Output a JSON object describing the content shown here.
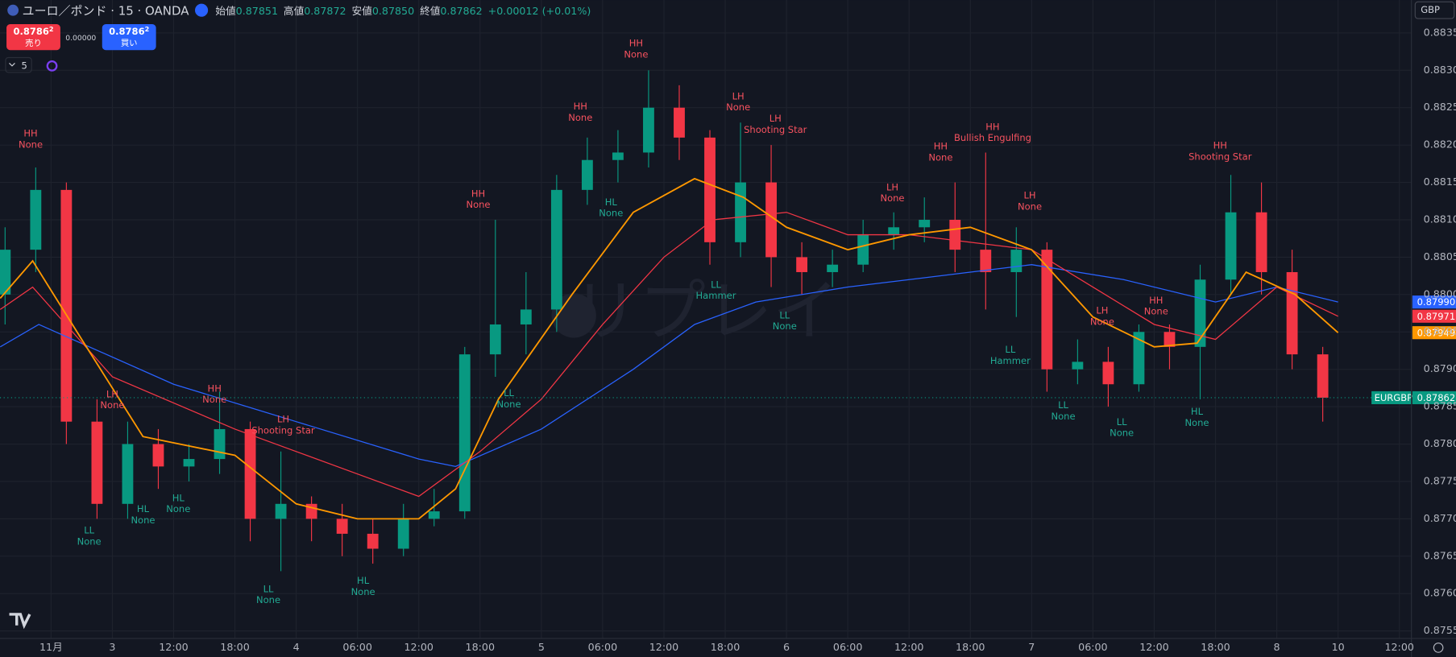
{
  "header": {
    "symbol": "ユーロ／ポンド · 15 · OANDA",
    "ohlc": [
      {
        "label": "始値",
        "value": "0.87851"
      },
      {
        "label": "高値",
        "value": "0.87872"
      },
      {
        "label": "安値",
        "value": "0.87850"
      },
      {
        "label": "終値",
        "value": "0.87862"
      }
    ],
    "change": "+0.00012 (+0.01%)"
  },
  "trade": {
    "sell_price": "0.8786",
    "sell_sup": "2",
    "sell_label": "売り",
    "spread": "0.00000",
    "buy_price": "0.8786",
    "buy_sup": "2",
    "buy_label": "買い"
  },
  "indicators_count": "5",
  "currency": "GBP",
  "watermark": "リプレイ",
  "chart_data": {
    "type": "candlestick",
    "up_color": "#089981",
    "down_color": "#f23645",
    "xlim": [
      -0.833,
      22.197
    ],
    "xticks": [
      {
        "value": 0,
        "label": "11月"
      },
      {
        "value": 1,
        "label": "3"
      },
      {
        "value": 2,
        "label": "12:00"
      },
      {
        "value": 3,
        "label": "18:00"
      },
      {
        "value": 4,
        "label": "4"
      },
      {
        "value": 5,
        "label": "06:00"
      },
      {
        "value": 6,
        "label": "12:00"
      },
      {
        "value": 7,
        "label": "18:00"
      },
      {
        "value": 8,
        "label": "5"
      },
      {
        "value": 9,
        "label": "06:00"
      },
      {
        "value": 10,
        "label": "12:00"
      },
      {
        "value": 11,
        "label": "18:00"
      },
      {
        "value": 12,
        "label": "6"
      },
      {
        "value": 13,
        "label": "06:00"
      },
      {
        "value": 14,
        "label": "12:00"
      },
      {
        "value": 15,
        "label": "18:00"
      },
      {
        "value": 16,
        "label": "7"
      },
      {
        "value": 17,
        "label": "06:00"
      },
      {
        "value": 18,
        "label": "12:00"
      },
      {
        "value": 19,
        "label": "18:00"
      },
      {
        "value": 20,
        "label": "8"
      },
      {
        "value": 21,
        "label": "10"
      },
      {
        "value": 22,
        "label": "12:00"
      }
    ],
    "ylim": [
      0.8754,
      0.88394
    ],
    "yticks": [
      {
        "value": 0.8755,
        "label": "0.87550"
      },
      {
        "value": 0.876,
        "label": "0.87600"
      },
      {
        "value": 0.8765,
        "label": "0.87650"
      },
      {
        "value": 0.877,
        "label": "0.87700"
      },
      {
        "value": 0.8775,
        "label": "0.87750"
      },
      {
        "value": 0.878,
        "label": "0.87800"
      },
      {
        "value": 0.8785,
        "label": "0.87850"
      },
      {
        "value": 0.879,
        "label": "0.87900"
      },
      {
        "value": 0.8795,
        "label": "0.87950"
      },
      {
        "value": 0.88,
        "label": "0.88000"
      },
      {
        "value": 0.8805,
        "label": "0.88050"
      },
      {
        "value": 0.881,
        "label": "0.88100"
      },
      {
        "value": 0.8815,
        "label": "0.88150"
      },
      {
        "value": 0.882,
        "label": "0.88200"
      },
      {
        "value": 0.8825,
        "label": "0.88250"
      },
      {
        "value": 0.883,
        "label": "0.88300"
      },
      {
        "value": 0.8835,
        "label": "0.88350"
      }
    ],
    "grid": true,
    "x": [
      -0.75,
      -0.25,
      0.25,
      0.75,
      1.25,
      1.75,
      2.25,
      2.75,
      3.25,
      3.75,
      4.25,
      4.75,
      5.25,
      5.75,
      6.25,
      6.75,
      7.25,
      7.75,
      8.25,
      8.75,
      9.25,
      9.75,
      10.25,
      10.75,
      11.25,
      11.75,
      12.25,
      12.75,
      13.25,
      13.75,
      14.25,
      14.75,
      15.25,
      15.75,
      16.25,
      16.75,
      17.25,
      17.75,
      18.25,
      18.75,
      19.25,
      19.75,
      20.25,
      20.75
    ],
    "open": [
      0.88,
      0.8806,
      0.8814,
      0.8783,
      0.8772,
      0.878,
      0.8777,
      0.8778,
      0.8782,
      0.877,
      0.8772,
      0.877,
      0.8768,
      0.8766,
      0.877,
      0.8771,
      0.8792,
      0.8796,
      0.8798,
      0.8814,
      0.8818,
      0.8819,
      0.8825,
      0.8821,
      0.8807,
      0.8815,
      0.8805,
      0.8803,
      0.8804,
      0.8808,
      0.8809,
      0.881,
      0.8806,
      0.8803,
      0.8806,
      0.879,
      0.8791,
      0.8788,
      0.8795,
      0.8793,
      0.8802,
      0.8811,
      0.8803,
      0.8792
    ],
    "high": [
      0.8809,
      0.8817,
      0.8815,
      0.8786,
      0.8783,
      0.8782,
      0.878,
      0.8787,
      0.8783,
      0.8779,
      0.8773,
      0.8772,
      0.877,
      0.8772,
      0.8774,
      0.8793,
      0.881,
      0.8803,
      0.8816,
      0.8821,
      0.8822,
      0.883,
      0.8828,
      0.8822,
      0.8823,
      0.882,
      0.8807,
      0.8806,
      0.881,
      0.8811,
      0.8813,
      0.8815,
      0.8819,
      0.8809,
      0.8807,
      0.8794,
      0.8793,
      0.8796,
      0.8796,
      0.8804,
      0.8816,
      0.8815,
      0.8806,
      0.8793
    ],
    "low": [
      0.8796,
      0.8803,
      0.878,
      0.877,
      0.877,
      0.8774,
      0.8775,
      0.8776,
      0.8767,
      0.8763,
      0.8767,
      0.8765,
      0.8764,
      0.8765,
      0.8769,
      0.877,
      0.8789,
      0.8792,
      0.8795,
      0.8812,
      0.8815,
      0.8817,
      0.8818,
      0.8804,
      0.8805,
      0.8801,
      0.88,
      0.8801,
      0.8803,
      0.8806,
      0.8807,
      0.8803,
      0.8798,
      0.8797,
      0.8787,
      0.8788,
      0.8785,
      0.8787,
      0.879,
      0.8786,
      0.88,
      0.88,
      0.879,
      0.8783
    ],
    "close": [
      0.8806,
      0.8814,
      0.8783,
      0.8772,
      0.878,
      0.8777,
      0.8778,
      0.8782,
      0.877,
      0.8772,
      0.877,
      0.8768,
      0.8766,
      0.877,
      0.8771,
      0.8792,
      0.8796,
      0.8798,
      0.8814,
      0.8818,
      0.8819,
      0.8825,
      0.8821,
      0.8807,
      0.8815,
      0.8805,
      0.8803,
      0.8804,
      0.8808,
      0.8809,
      0.881,
      0.8806,
      0.8803,
      0.8806,
      0.879,
      0.8791,
      0.8788,
      0.8795,
      0.8793,
      0.8802,
      0.8811,
      0.8803,
      0.8792,
      0.87862
    ],
    "lines": [
      {
        "color": "#2962ff",
        "x": [
          -0.83,
          -0.2,
          2,
          4,
          6,
          6.6,
          8,
          9.5,
          10.5,
          11.5,
          13,
          15,
          16,
          17.5,
          19,
          20,
          21
        ],
        "values": [
          0.8793,
          0.8796,
          0.8788,
          0.8783,
          0.8778,
          0.8777,
          0.8782,
          0.879,
          0.8796,
          0.8799,
          0.8801,
          0.8803,
          0.8804,
          0.8802,
          0.8799,
          0.8801,
          0.8799
        ]
      },
      {
        "color": "#f23645",
        "x": [
          -0.83,
          -0.3,
          1,
          3,
          4,
          5,
          6,
          7,
          8,
          9,
          10,
          10.8,
          12,
          13,
          14,
          15,
          16,
          17,
          18,
          19,
          20,
          21
        ],
        "values": [
          0.8798,
          0.8801,
          0.8789,
          0.8782,
          0.8779,
          0.8776,
          0.8773,
          0.8779,
          0.8786,
          0.8796,
          0.8805,
          0.881,
          0.8811,
          0.8808,
          0.8808,
          0.8807,
          0.8806,
          0.8801,
          0.8796,
          0.8794,
          0.8801,
          0.87971
        ]
      },
      {
        "color": "#ff9800",
        "x": [
          -0.83,
          -0.3,
          0.5,
          1.5,
          3,
          4,
          5,
          6,
          6.6,
          7.3,
          8.5,
          9.5,
          10.5,
          11.3,
          12,
          13,
          14,
          15,
          16,
          17,
          18,
          18.7,
          19.5,
          20.3,
          21
        ],
        "values": [
          0.87995,
          0.88045,
          0.8794,
          0.8781,
          0.87785,
          0.8772,
          0.877,
          0.877,
          0.8774,
          0.8786,
          0.88,
          0.8811,
          0.88155,
          0.8813,
          0.8809,
          0.8806,
          0.8808,
          0.8809,
          0.8806,
          0.8797,
          0.8793,
          0.87935,
          0.8803,
          0.88,
          0.87949
        ]
      }
    ],
    "price_tags": [
      {
        "value": 0.8799,
        "value_label": "0.87990",
        "color": "#2962ff"
      },
      {
        "value": 0.87971,
        "value_label": "0.87971",
        "color": "#f23645"
      },
      {
        "value": 0.87949,
        "value_label": "0.87949",
        "color": "#ff9800"
      }
    ],
    "last_price": {
      "symbol": "EURGBP",
      "value": 0.87862,
      "value_label": "0.87862",
      "color": "#089981"
    },
    "annotations": [
      {
        "lines": [
          "HH",
          "None"
        ],
        "color": "#f7525f"
      },
      {
        "lines": [
          "LL",
          "None"
        ],
        "color": "#22ab94"
      },
      {
        "lines": [
          "HL",
          "None"
        ],
        "color": "#22ab94"
      },
      {
        "lines": [
          "HL",
          "None"
        ],
        "color": "#22ab94"
      },
      {
        "lines": [
          "LH",
          "None"
        ],
        "color": "#f7525f"
      },
      {
        "lines": [
          "HH",
          "None"
        ],
        "color": "#f7525f"
      },
      {
        "lines": [
          "LH",
          "Shooting Star"
        ],
        "color": "#f7525f"
      },
      {
        "lines": [
          "LL",
          "None"
        ],
        "color": "#22ab94"
      },
      {
        "lines": [
          "HL",
          "None"
        ],
        "color": "#22ab94"
      },
      {
        "lines": [
          "HH",
          "None"
        ],
        "color": "#f7525f"
      },
      {
        "lines": [
          "LL",
          "None"
        ],
        "color": "#22ab94"
      },
      {
        "lines": [
          "HH",
          "None"
        ],
        "color": "#f7525f"
      },
      {
        "lines": [
          "HL",
          "None"
        ],
        "color": "#22ab94"
      },
      {
        "lines": [
          "HH",
          "None"
        ],
        "color": "#f7525f"
      },
      {
        "lines": [
          "LH",
          "None"
        ],
        "color": "#f7525f"
      },
      {
        "lines": [
          "LH",
          "Shooting Star"
        ],
        "color": "#f7525f"
      },
      {
        "lines": [
          "LL",
          "Hammer"
        ],
        "color": "#22ab94"
      },
      {
        "lines": [
          "LL",
          "None"
        ],
        "color": "#22ab94"
      },
      {
        "lines": [
          "LH",
          "None"
        ],
        "color": "#f7525f"
      },
      {
        "lines": [
          "HH",
          "None"
        ],
        "color": "#f7525f"
      },
      {
        "lines": [
          "HH",
          "Bullish Engulfing"
        ],
        "color": "#f7525f"
      },
      {
        "lines": [
          "LH",
          "None"
        ],
        "color": "#f7525f"
      },
      {
        "lines": [
          "LL",
          "Hammer"
        ],
        "color": "#22ab94"
      },
      {
        "lines": [
          "LL",
          "None"
        ],
        "color": "#22ab94"
      },
      {
        "lines": [
          "LH",
          "None"
        ],
        "color": "#f7525f"
      },
      {
        "lines": [
          "HH",
          "None"
        ],
        "color": "#f7525f"
      },
      {
        "lines": [
          "LL",
          "None"
        ],
        "color": "#22ab94"
      },
      {
        "lines": [
          "HL",
          "None"
        ],
        "color": "#22ab94"
      },
      {
        "lines": [
          "HH",
          "Shooting Star"
        ],
        "color": "#f7525f"
      }
    ]
  }
}
